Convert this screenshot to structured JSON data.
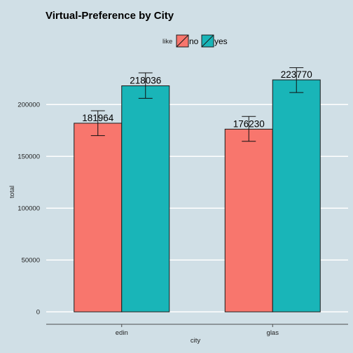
{
  "chart_data": {
    "type": "bar",
    "title": "Virtual-Preference by City",
    "xlabel": "city",
    "ylabel": "total",
    "categories": [
      "edin",
      "glas"
    ],
    "series": [
      {
        "name": "no",
        "color": "#f8766d",
        "values": [
          181964,
          176230
        ],
        "error_low": [
          170000,
          164500
        ],
        "error_high": [
          194000,
          188500
        ]
      },
      {
        "name": "yes",
        "color": "#19b5b8",
        "values": [
          218036,
          223770
        ],
        "error_low": [
          206000,
          211500
        ],
        "error_high": [
          230500,
          235500
        ]
      }
    ],
    "data_labels": [
      [
        "181964",
        "176230"
      ],
      [
        "218036",
        "223770"
      ]
    ],
    "ylim": [
      -12000,
      240000
    ],
    "yticks": [
      0,
      50000,
      100000,
      150000,
      200000
    ],
    "ytick_labels": [
      "0",
      "50000",
      "100000",
      "150000",
      "200000"
    ],
    "grid": "horizontal",
    "legend": {
      "title": "like",
      "position": "top",
      "entries": [
        "no",
        "yes"
      ]
    },
    "colors": {
      "background": "#d0dfe6",
      "gridline": "#ffffff",
      "axis": "#4d4d4d",
      "bar_outline": "#1a1a1a"
    }
  }
}
